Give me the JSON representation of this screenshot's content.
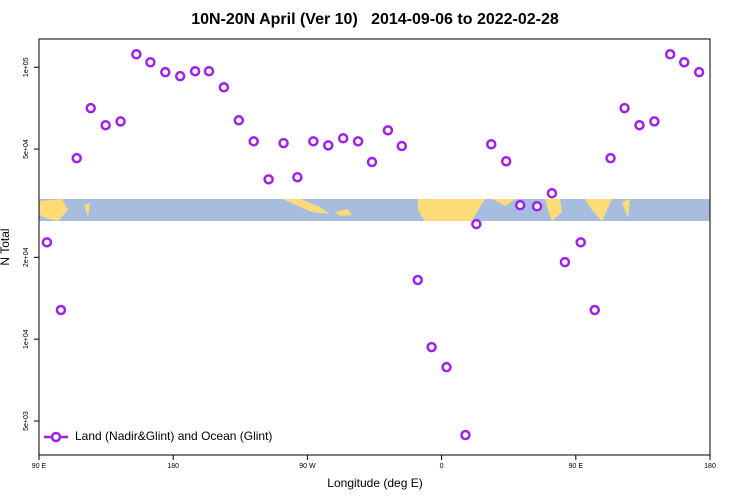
{
  "chart_data": {
    "type": "scatter",
    "title": "10N-20N April (Ver 10)   2014-09-06 to 2022-02-28",
    "x_label": "Longitude (deg E)",
    "y_label": "N Total",
    "log_y": true,
    "xlim": [
      90,
      540
    ],
    "xticks": [
      {
        "value": 90,
        "label": "90 E"
      },
      180,
      {
        "value": 270,
        "label": "90 W"
      },
      {
        "value": 360,
        "label": "0"
      },
      {
        "value": 450,
        "label": "90 E"
      },
      {
        "value": 540,
        "label": "180"
      }
    ],
    "ylim": [
      3750,
      127000
    ],
    "yticks": [
      {
        "value": 100000,
        "label": "1e+05"
      },
      {
        "value": 50000,
        "label": "5e+04"
      },
      {
        "value": 20000,
        "label": "2e+04"
      },
      {
        "value": 10000,
        "label": "1e+04"
      },
      {
        "value": 5000,
        "label": "5e+03"
      }
    ],
    "legend": "bottom-left",
    "series": [
      {
        "name": "Land (Nadir&Glint) and Ocean (Glint)",
        "color": "#a020f0",
        "x": [
          95.3,
          104.7,
          115.3,
          124.7,
          134.7,
          144.7,
          155.3,
          164.7,
          174.7,
          184.7,
          194.7,
          204,
          214,
          224,
          234,
          244,
          254,
          263.3,
          274,
          284,
          294,
          304,
          313.3,
          324,
          333.3,
          344,
          353.3,
          363.3,
          376,
          383.3,
          393.3,
          403.3,
          412.7,
          424,
          434,
          442.7,
          453.3,
          462.7,
          473.3,
          482.7,
          492.7,
          502.7,
          513.3,
          522.7,
          532.7
        ],
        "values": [
          22700,
          12800,
          46300,
          70700,
          61200,
          63200,
          111600,
          104300,
          95900,
          92700,
          96700,
          96700,
          84400,
          63800,
          53400,
          38700,
          52600,
          39400,
          53400,
          51600,
          54800,
          53400,
          44800,
          58600,
          51300,
          16500,
          9350,
          7890,
          4440,
          26500,
          52100,
          45100,
          31100,
          30800,
          34400,
          19200,
          22700,
          12800,
          46300,
          70700,
          61200,
          63200,
          111600,
          104300,
          95900
        ]
      }
    ]
  }
}
